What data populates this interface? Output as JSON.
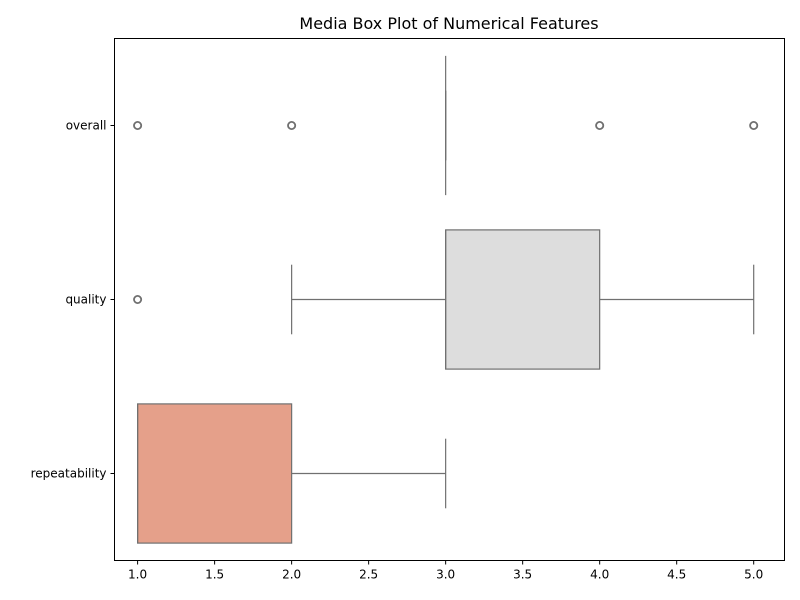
{
  "chart_data": {
    "type": "boxplot",
    "orientation": "horizontal",
    "title": "Media Box Plot of Numerical Features",
    "xlabel": "",
    "ylabel": "",
    "xlim": [
      0.85,
      5.2
    ],
    "xticks": [
      1.0,
      1.5,
      2.0,
      2.5,
      3.0,
      3.5,
      4.0,
      4.5,
      5.0
    ],
    "xtick_labels": [
      "1.0",
      "1.5",
      "2.0",
      "2.5",
      "3.0",
      "3.5",
      "4.0",
      "4.5",
      "5.0"
    ],
    "grid": false,
    "legend": "none",
    "edge_color": "#707070",
    "categories": [
      "overall",
      "quality",
      "repeatability"
    ],
    "boxes": [
      {
        "category": "overall",
        "color": "#c6d6e8",
        "min": 3.0,
        "q1": 3.0,
        "median": 3.0,
        "q3": 3.0,
        "max": 3.0,
        "outliers": [
          1.0,
          2.0,
          4.0,
          5.0
        ]
      },
      {
        "category": "quality",
        "color": "#dddddd",
        "min": 2.0,
        "q1": 3.0,
        "median": 3.0,
        "q3": 4.0,
        "max": 5.0,
        "outliers": [
          1.0
        ]
      },
      {
        "category": "repeatability",
        "color": "#e5a08a",
        "min": 1.0,
        "q1": 1.0,
        "median": 1.0,
        "q3": 2.0,
        "max": 3.0,
        "outliers": []
      }
    ]
  }
}
